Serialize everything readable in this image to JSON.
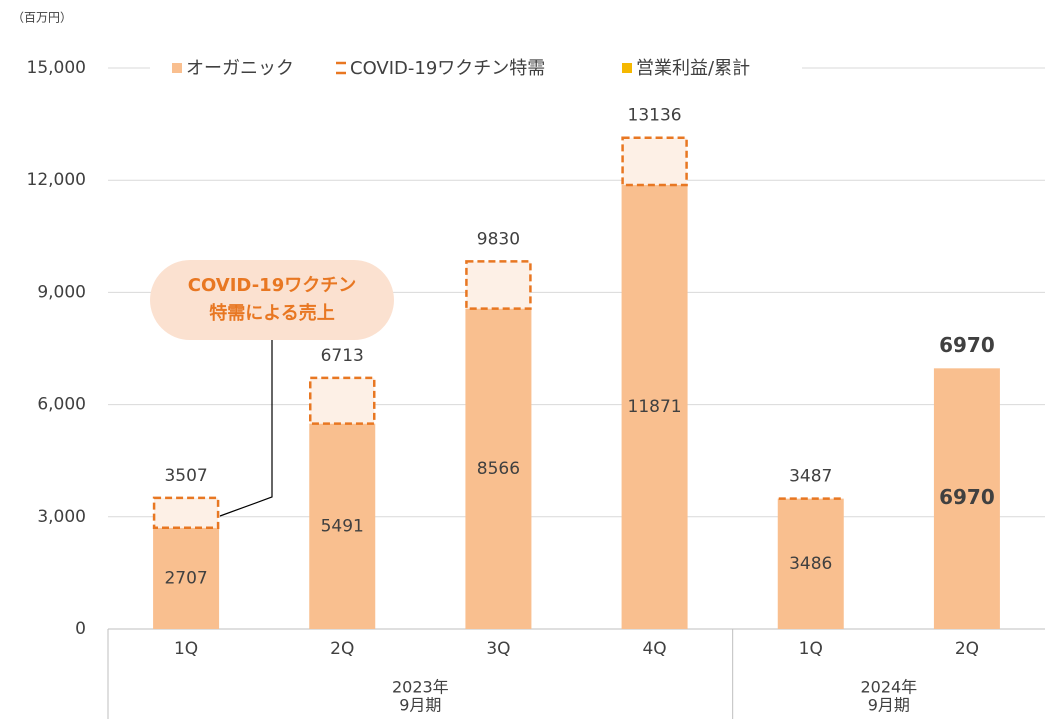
{
  "chart_data": {
    "type": "stacked_bar",
    "unit_label": "（百万円）",
    "categories": [
      "1Q",
      "2Q",
      "3Q",
      "4Q",
      "1Q",
      "2Q"
    ],
    "groups": [
      {
        "label": [
          "2023年",
          "9月期"
        ],
        "size": 4
      },
      {
        "label": [
          "2024年",
          "9月期"
        ],
        "size": 2
      }
    ],
    "series": [
      {
        "name": "オーガニック",
        "color": "#f9bf8f",
        "values": [
          2707,
          5491,
          8566,
          11871,
          3486,
          6970
        ]
      },
      {
        "name": "COVID-19ワクチン特需",
        "color": "#e87722",
        "values": [
          800,
          1222,
          1264,
          1265,
          1,
          0
        ]
      },
      {
        "name": "営業利益/累計",
        "color": "#f5b800",
        "values": [
          null,
          null,
          null,
          null,
          null,
          null
        ]
      }
    ],
    "totals": [
      3507,
      6713,
      9830,
      13136,
      3487,
      6970
    ],
    "highlight_index": 5,
    "annotation": [
      "COVID-19ワクチン",
      "特需による売上"
    ],
    "ylim": [
      0,
      15000
    ],
    "yticks": [
      0,
      {
        "value": 3000,
        "label": "3,000"
      },
      {
        "value": 6000,
        "label": "6,000"
      },
      {
        "value": 9000,
        "label": "9,000"
      },
      {
        "value": 12000,
        "label": "12,000"
      },
      {
        "value": 15000,
        "label": "15,000"
      }
    ],
    "grid": true
  }
}
